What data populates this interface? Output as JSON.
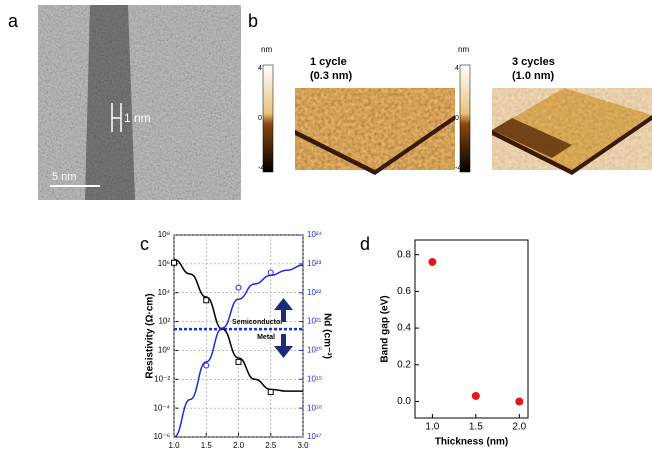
{
  "figure": {
    "panels": [
      "a",
      "b",
      "c",
      "d"
    ],
    "panel_a": {
      "scale_bar": "5 nm",
      "marker": "1 nm"
    },
    "panel_b": {
      "unit": "nm",
      "images": [
        {
          "title": "1 cycle",
          "subtitle": "(0.3 nm)",
          "colorbar_ticks": [
            4,
            0,
            -4
          ]
        },
        {
          "title": "3 cycles",
          "subtitle": "(1.0 nm)",
          "colorbar_ticks": [
            4,
            0,
            -4
          ]
        }
      ]
    }
  },
  "chart_data": [
    {
      "type": "line",
      "xlabel": "Thickness (nm)",
      "ylabel": "Resistivity (Ω·cm)",
      "y2label": "Nd (cm⁻³)",
      "xlim": [
        1.0,
        3.0
      ],
      "xticks": [
        {
          "value": 1.0,
          "label": "1.0"
        },
        {
          "value": 1.5,
          "label": "1.5"
        },
        {
          "value": 2.0,
          "label": "2.0"
        },
        {
          "value": 2.5,
          "label": "2.5"
        },
        {
          "value": 3.0,
          "label": "3.0"
        }
      ],
      "ylim": [
        1e-06,
        100000000.0
      ],
      "log_y": true,
      "yticks": [
        {
          "value": 1e-06,
          "label": "10⁻⁶"
        },
        {
          "value": 0.0001,
          "label": "10⁻⁴"
        },
        {
          "value": 0.01,
          "label": "10⁻²"
        },
        {
          "value": 1,
          "label": "10⁰"
        },
        {
          "value": 100,
          "label": "10²"
        },
        {
          "value": 10000.0,
          "label": "10⁴"
        },
        {
          "value": 1000000.0,
          "label": "10⁶"
        },
        {
          "value": 100000000.0,
          "label": "10⁸"
        }
      ],
      "y2lim": [
        1e+17,
        1e+24
      ],
      "y2ticks": [
        {
          "value": 1e+17,
          "label": "10¹⁷"
        },
        {
          "value": 1e+18,
          "label": "10¹⁸"
        },
        {
          "value": 1e+19,
          "label": "10¹⁹"
        },
        {
          "value": 1e+20,
          "label": "10²⁰"
        },
        {
          "value": 1e+21,
          "label": "10²¹"
        },
        {
          "value": 1e+22,
          "label": "10²²"
        },
        {
          "value": 1e+23,
          "label": "10²³"
        },
        {
          "value": 1e+24,
          "label": "10²⁴"
        }
      ],
      "y2color": "#1a2ee0",
      "series": [
        {
          "color": "#000000",
          "style": "line",
          "x": [
            1.0,
            1.25,
            1.5,
            1.75,
            2.0,
            2.25,
            2.5,
            2.75,
            3.0
          ],
          "values": [
            2000000.0,
            200000.0,
            5000.0,
            30,
            0.3,
            0.01,
            0.002,
            0.0015,
            0.0015
          ]
        },
        {
          "color": "#000000",
          "style": "square",
          "x": [
            1.0,
            1.5,
            2.0,
            2.5
          ],
          "values": [
            1200000.0,
            3000.0,
            0.16,
            0.0013
          ]
        },
        {
          "color": "#1a2ee0",
          "style": "line",
          "axis": "y2",
          "x": [
            1.0,
            1.25,
            1.5,
            1.75,
            2.0,
            2.25,
            2.5,
            2.75,
            3.0
          ],
          "values": [
            1e+17,
            2e+18,
            4e+19,
            6e+20,
            6e+21,
            2e+22,
            4e+22,
            6e+22,
            9e+22
          ]
        },
        {
          "color": "#1a2ee0",
          "style": "circle",
          "axis": "y2",
          "x": [
            1.5,
            2.0,
            2.5
          ],
          "values": [
            3e+19,
            1.5e+22,
            5e+22
          ]
        }
      ],
      "reference_line": {
        "value": 30,
        "color": "#1a2ee0"
      },
      "annotations": [
        "Semiconductor",
        "Metal"
      ]
    },
    {
      "type": "scatter",
      "xlabel": "Thickness (nm)",
      "ylabel": "Band gap (eV)",
      "xlim": [
        0.8,
        2.1
      ],
      "xticks": [
        {
          "value": 1.0,
          "label": "1.0"
        },
        {
          "value": 1.5,
          "label": "1.5"
        },
        {
          "value": 2.0,
          "label": "2.0"
        }
      ],
      "ylim": [
        -0.09,
        0.88
      ],
      "yticks": [
        {
          "value": 0.0,
          "label": "0.0"
        },
        {
          "value": 0.2,
          "label": "0.2"
        },
        {
          "value": 0.4,
          "label": "0.4"
        },
        {
          "value": 0.6,
          "label": "0.6"
        },
        {
          "value": 0.8,
          "label": "0.8"
        }
      ],
      "series": [
        {
          "color": "#e8141b",
          "x": [
            1.0,
            1.5,
            2.0
          ],
          "values": [
            0.76,
            0.03,
            0.0
          ]
        }
      ]
    }
  ]
}
